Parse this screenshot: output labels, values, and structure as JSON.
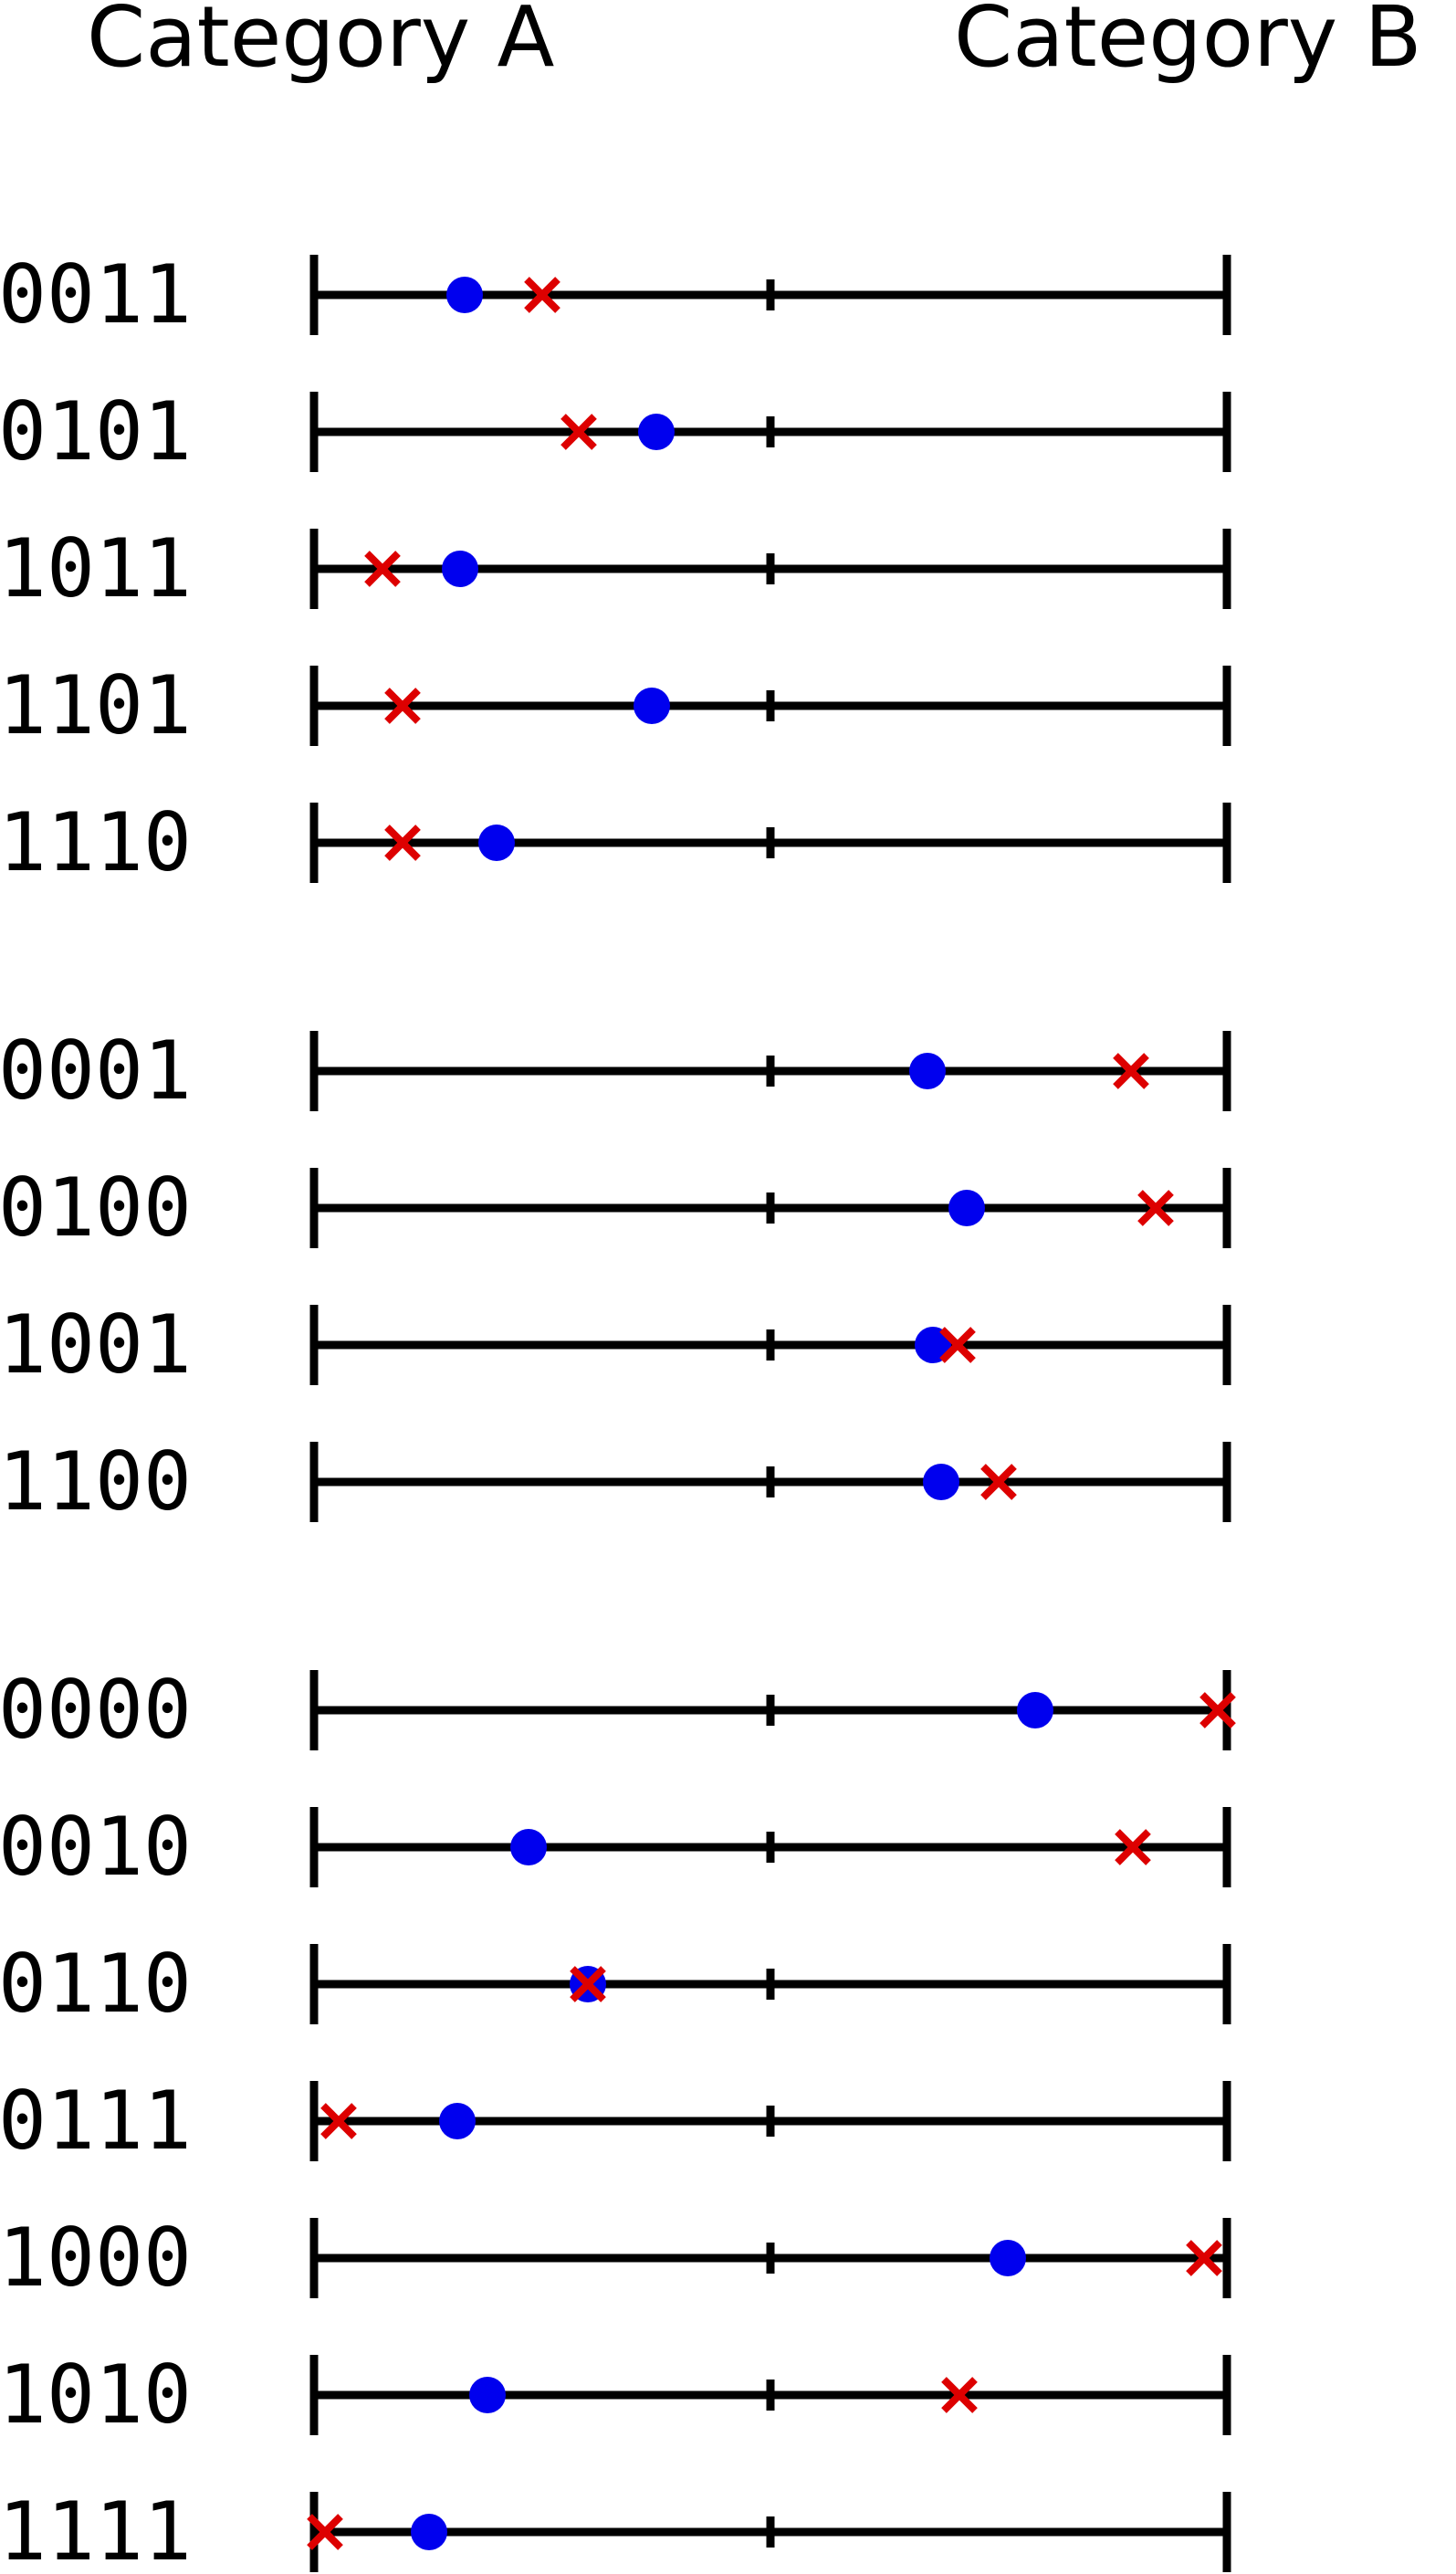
{
  "chart_data": {
    "type": "scatter",
    "category_left": "Category A",
    "category_right": "Category B",
    "xlim": [
      0,
      1
    ],
    "ticks": [
      0,
      0.5,
      1
    ],
    "grid": false,
    "legend": "none",
    "markers": {
      "circle": {
        "shape": "circle",
        "color": "#0000ee"
      },
      "cross": {
        "shape": "x",
        "color": "#dd0000"
      }
    },
    "groups": [
      {
        "rows": [
          {
            "label": "0011",
            "circle": 0.165,
            "cross": 0.25
          },
          {
            "label": "0101",
            "circle": 0.375,
            "cross": 0.29
          },
          {
            "label": "1011",
            "circle": 0.16,
            "cross": 0.075
          },
          {
            "label": "1101",
            "circle": 0.37,
            "cross": 0.097
          },
          {
            "label": "1110",
            "circle": 0.2,
            "cross": 0.097
          }
        ]
      },
      {
        "rows": [
          {
            "label": "0001",
            "circle": 0.672,
            "cross": 0.895
          },
          {
            "label": "0100",
            "circle": 0.715,
            "cross": 0.922
          },
          {
            "label": "1001",
            "circle": 0.678,
            "cross": 0.705
          },
          {
            "label": "1100",
            "circle": 0.687,
            "cross": 0.75
          }
        ]
      },
      {
        "rows": [
          {
            "label": "0000",
            "circle": 0.79,
            "cross": 0.99
          },
          {
            "label": "0010",
            "circle": 0.235,
            "cross": 0.897
          },
          {
            "label": "0110",
            "circle": 0.3,
            "cross": 0.3
          },
          {
            "label": "0111",
            "circle": 0.157,
            "cross": 0.027
          },
          {
            "label": "1000",
            "circle": 0.76,
            "cross": 0.975
          },
          {
            "label": "1010",
            "circle": 0.19,
            "cross": 0.707
          },
          {
            "label": "1111",
            "circle": 0.126,
            "cross": 0.012
          }
        ]
      }
    ]
  }
}
